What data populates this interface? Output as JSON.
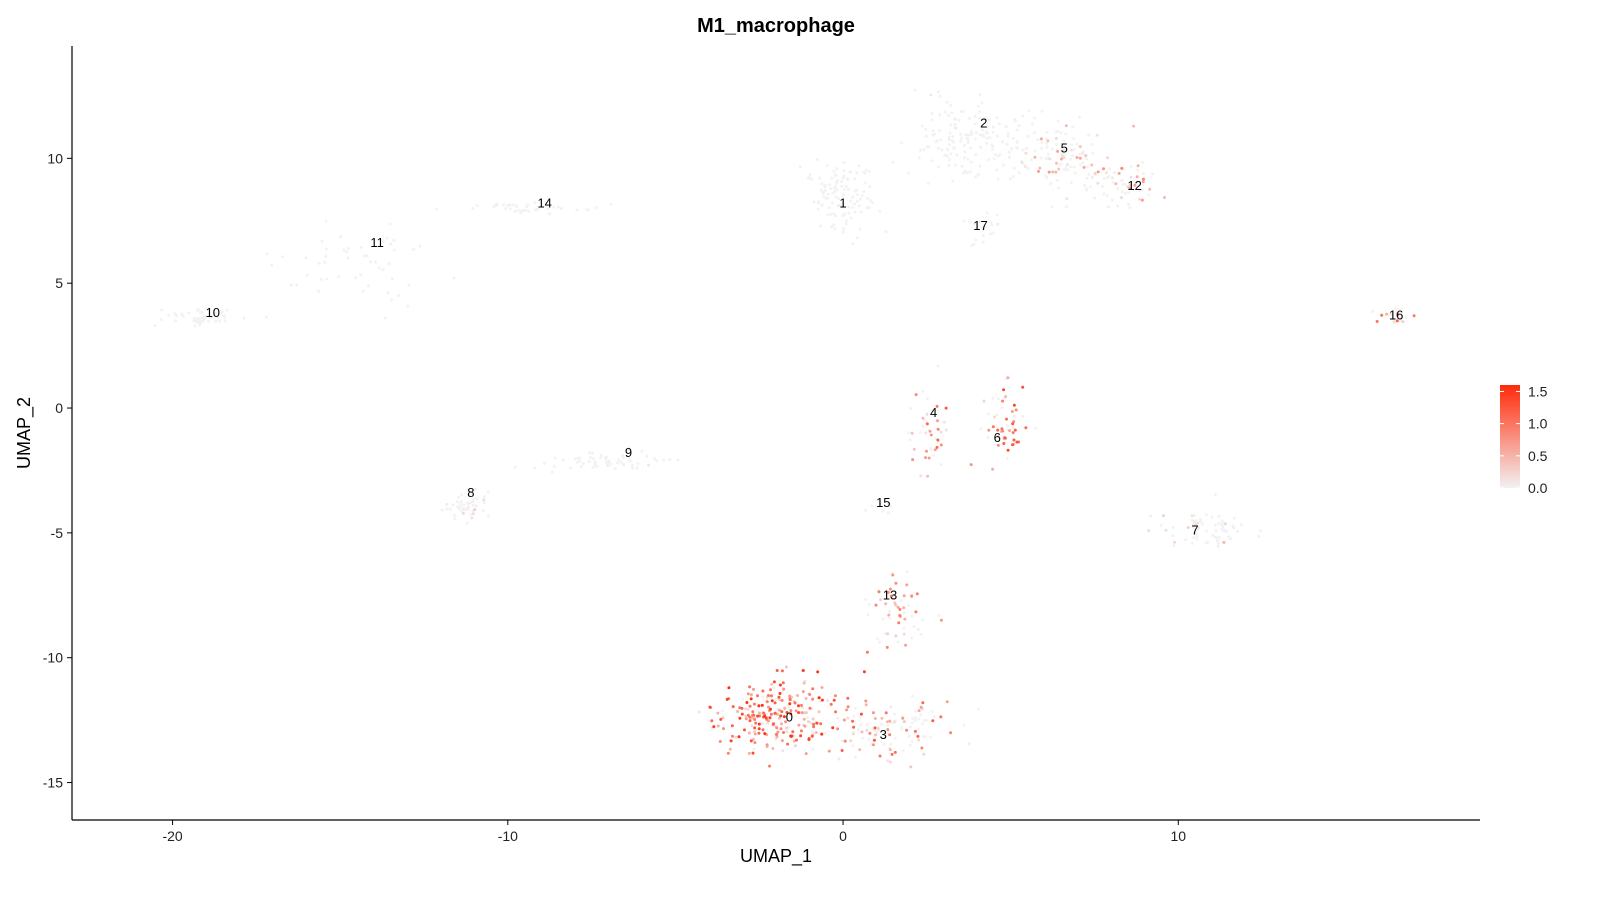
{
  "chart_data": {
    "type": "scatter",
    "title": "M1_macrophage",
    "xlabel": "UMAP_1",
    "ylabel": "UMAP_2",
    "xlim": [
      -23,
      19
    ],
    "ylim": [
      -16.5,
      14.5
    ],
    "xticks": [
      -20,
      -10,
      0,
      10
    ],
    "yticks": [
      -15,
      -10,
      -5,
      0,
      5,
      10
    ],
    "grid": false,
    "legend": {
      "placement": "right",
      "ticks": [
        1.5,
        1.0,
        0.5,
        0.0
      ],
      "tick_labels": [
        "1.5",
        "1.0",
        "0.5",
        "0.0"
      ],
      "range": [
        0,
        1.6
      ]
    },
    "colors": {
      "low": "#f2f2f2",
      "high": "#ff2a0a"
    },
    "cluster_labels": [
      {
        "label": "0",
        "x": -1.6,
        "y": -12.4
      },
      {
        "label": "1",
        "x": 0.0,
        "y": 8.2
      },
      {
        "label": "2",
        "x": 4.2,
        "y": 11.4
      },
      {
        "label": "3",
        "x": 1.2,
        "y": -13.1
      },
      {
        "label": "4",
        "x": 2.7,
        "y": -0.2
      },
      {
        "label": "5",
        "x": 6.6,
        "y": 10.4
      },
      {
        "label": "6",
        "x": 4.6,
        "y": -1.2
      },
      {
        "label": "7",
        "x": 10.5,
        "y": -4.9
      },
      {
        "label": "8",
        "x": -11.1,
        "y": -3.4
      },
      {
        "label": "9",
        "x": -6.4,
        "y": -1.8
      },
      {
        "label": "10",
        "x": -18.8,
        "y": 3.8
      },
      {
        "label": "11",
        "x": -13.9,
        "y": 6.6
      },
      {
        "label": "12",
        "x": 8.7,
        "y": 8.9
      },
      {
        "label": "13",
        "x": 1.4,
        "y": -7.5
      },
      {
        "label": "14",
        "x": -8.9,
        "y": 8.2
      },
      {
        "label": "15",
        "x": 1.2,
        "y": -3.8
      },
      {
        "label": "16",
        "x": 16.5,
        "y": 3.7
      },
      {
        "label": "17",
        "x": 4.1,
        "y": 7.3
      }
    ],
    "clusters": [
      {
        "label": "0",
        "cx": -2.0,
        "cy": -12.2,
        "sx": 1.3,
        "sy": 1.0,
        "n": 260,
        "expr": 0.55
      },
      {
        "label": "3",
        "cx": 1.3,
        "cy": -12.9,
        "sx": 1.3,
        "sy": 0.9,
        "n": 120,
        "expr": 0.35
      },
      {
        "label": "13",
        "cx": 1.6,
        "cy": -8.2,
        "sx": 0.6,
        "sy": 1.2,
        "n": 60,
        "expr": 0.3
      },
      {
        "label": "1",
        "cx": -0.1,
        "cy": 8.5,
        "sx": 0.8,
        "sy": 1.0,
        "n": 110,
        "expr": 0.02
      },
      {
        "label": "2",
        "cx": 3.9,
        "cy": 10.8,
        "sx": 1.4,
        "sy": 1.2,
        "n": 160,
        "expr": 0.03
      },
      {
        "label": "5",
        "cx": 6.5,
        "cy": 10.2,
        "sx": 1.0,
        "sy": 1.1,
        "n": 110,
        "expr": 0.2
      },
      {
        "label": "12",
        "cx": 8.4,
        "cy": 9.0,
        "sx": 0.8,
        "sy": 0.6,
        "n": 60,
        "expr": 0.25
      },
      {
        "label": "17",
        "cx": 4.2,
        "cy": 7.2,
        "sx": 0.3,
        "sy": 0.8,
        "n": 20,
        "expr": 0.02
      },
      {
        "label": "4",
        "cx": 2.6,
        "cy": -1.0,
        "sx": 0.4,
        "sy": 1.2,
        "n": 45,
        "expr": 0.35
      },
      {
        "label": "6",
        "cx": 4.8,
        "cy": -0.8,
        "sx": 0.6,
        "sy": 1.2,
        "n": 55,
        "expr": 0.4
      },
      {
        "label": "15",
        "cx": 1.0,
        "cy": -3.9,
        "sx": 0.3,
        "sy": 0.2,
        "n": 8,
        "expr": 0.02
      },
      {
        "label": "7",
        "cx": 10.8,
        "cy": -4.8,
        "sx": 0.9,
        "sy": 0.5,
        "n": 70,
        "expr": 0.15
      },
      {
        "label": "8",
        "cx": -11.2,
        "cy": -4.0,
        "sx": 0.5,
        "sy": 0.4,
        "n": 50,
        "expr": 0.12
      },
      {
        "label": "9",
        "cx": -7.0,
        "cy": -2.1,
        "sx": 1.5,
        "sy": 0.3,
        "n": 60,
        "expr": 0.05
      },
      {
        "label": "10",
        "cx": -19.3,
        "cy": 3.6,
        "sx": 0.8,
        "sy": 0.25,
        "n": 50,
        "expr": 0.01
      },
      {
        "label": "11",
        "cx": -14.3,
        "cy": 5.7,
        "sx": 1.8,
        "sy": 1.0,
        "n": 50,
        "expr": 0.01
      },
      {
        "label": "14",
        "cx": -9.2,
        "cy": 8.0,
        "sx": 1.7,
        "sy": 0.15,
        "n": 40,
        "expr": 0.01
      },
      {
        "label": "16",
        "cx": 16.3,
        "cy": 3.7,
        "sx": 0.4,
        "sy": 0.2,
        "n": 20,
        "expr": 0.4
      }
    ]
  }
}
